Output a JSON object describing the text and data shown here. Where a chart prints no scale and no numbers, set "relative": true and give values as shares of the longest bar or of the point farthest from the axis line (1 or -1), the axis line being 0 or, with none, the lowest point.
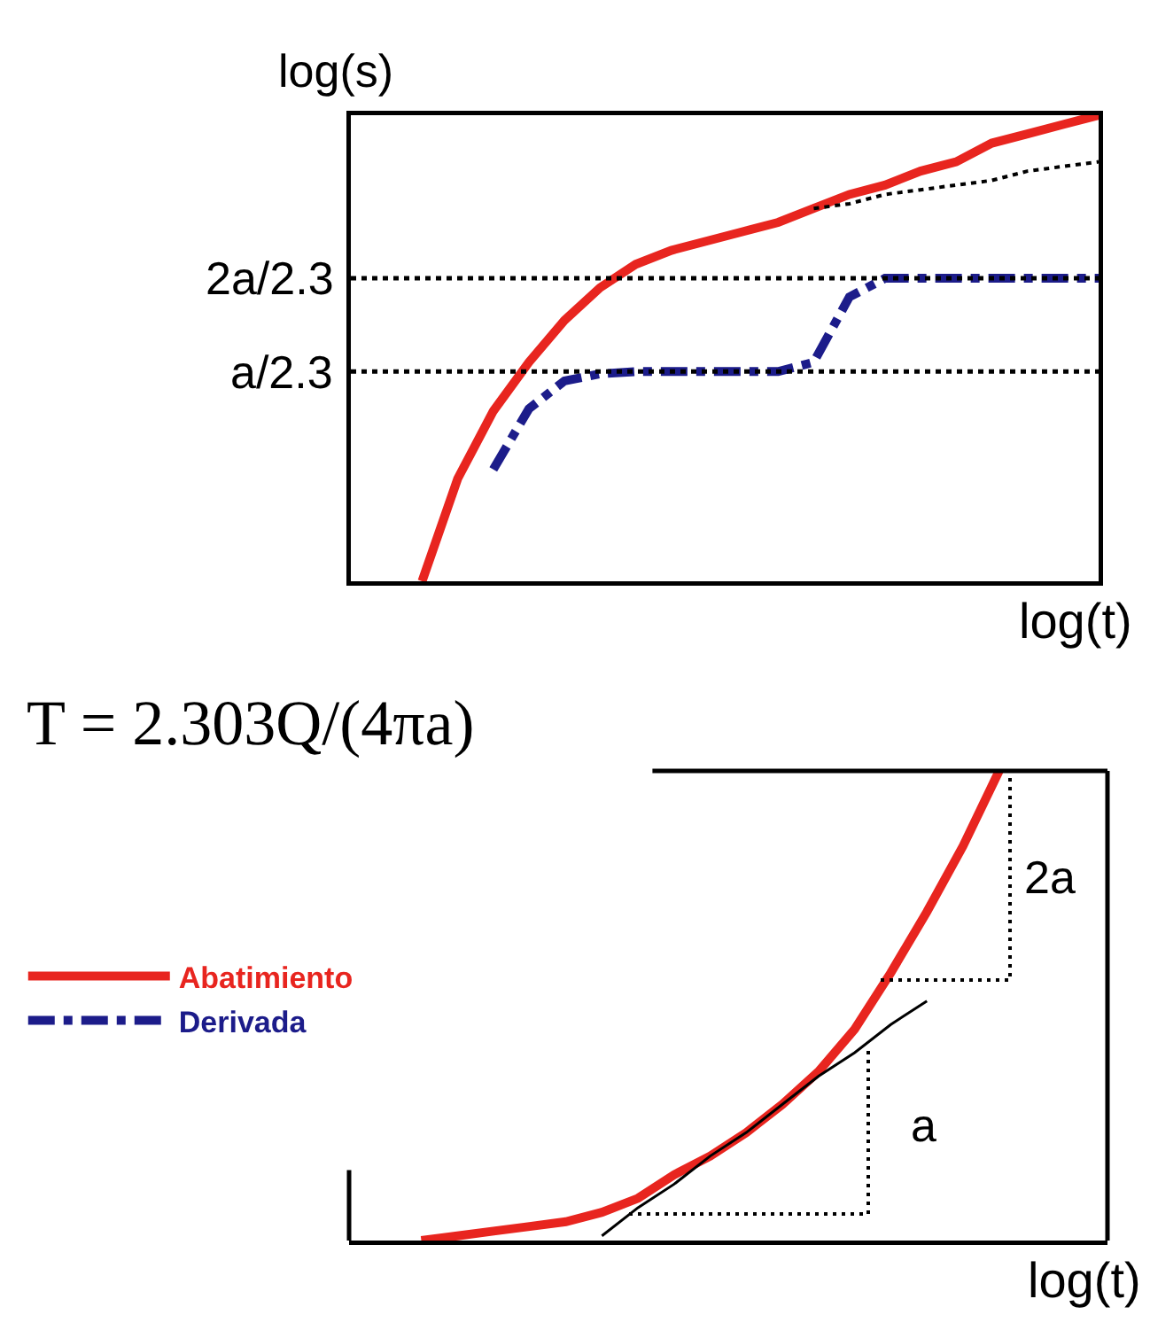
{
  "chart_data": [
    {
      "type": "line",
      "relative": true,
      "xlabel": "log(t)",
      "ylabel": "log(s)",
      "grid": false,
      "marker": "none",
      "legend": "bottom left",
      "categories": [
        null,
        null,
        null,
        null,
        null,
        null,
        null,
        null,
        null,
        null,
        null,
        null,
        null,
        null,
        null,
        null,
        null,
        null,
        null,
        null,
        null,
        null
      ],
      "series": [
        {
          "name": "Abatimiento",
          "color": "#e8251f",
          "line_style": "solid",
          "values": [
            null,
            null,
            0.0,
            0.22,
            0.365,
            0.47,
            0.56,
            0.63,
            0.68,
            0.71,
            0.73,
            0.75,
            0.77,
            0.8,
            0.83,
            0.85,
            0.88,
            0.9,
            0.94,
            0.96,
            0.98,
            1.0
          ]
        },
        {
          "name": "Derivada",
          "color": "#1c1c8a",
          "line_style": "dashdot",
          "values": [
            null,
            null,
            null,
            null,
            0.24,
            0.37,
            0.43,
            0.445,
            0.45,
            0.45,
            0.45,
            0.45,
            0.45,
            0.47,
            0.61,
            0.65,
            0.65,
            0.65,
            0.65,
            0.65,
            0.65,
            0.65
          ]
        },
        {
          "color": "#000000",
          "line_style": "dotted",
          "values": [
            null,
            null,
            null,
            null,
            null,
            null,
            null,
            null,
            null,
            null,
            null,
            null,
            null,
            0.8,
            0.81,
            0.83,
            0.84,
            0.85,
            0.86,
            0.88,
            0.89,
            0.9
          ]
        }
      ],
      "ref_lines": [
        {
          "axis": "y",
          "value": 0.65,
          "label": "2a/2.3",
          "color": "#000000",
          "line_style": "dotted"
        },
        {
          "axis": "y",
          "value": 0.45,
          "label": "a/2.3",
          "color": "#000000",
          "line_style": "dotted"
        }
      ]
    },
    {
      "type": "line",
      "relative": true,
      "xlabel": "log(t)",
      "grid": false,
      "marker": "none",
      "categories": [
        null,
        null,
        null,
        null,
        null,
        null,
        null,
        null,
        null,
        null,
        null,
        null,
        null,
        null,
        null,
        null,
        null,
        null,
        null,
        null,
        null,
        null
      ],
      "annotations": [
        "T = 2.303Q/(4πa)",
        "a",
        "2a"
      ],
      "series": [
        {
          "color": "#e8251f",
          "line_style": "solid",
          "values": [
            null,
            null,
            0.0,
            0.01,
            0.02,
            0.03,
            0.04,
            0.06,
            0.09,
            0.14,
            0.18,
            0.23,
            0.29,
            0.36,
            0.45,
            0.57,
            0.7,
            0.84,
            1.0,
            null,
            null,
            null
          ]
        },
        {
          "color": "#000000",
          "line_style": "solid",
          "values": [
            null,
            null,
            null,
            null,
            null,
            null,
            null,
            0.01,
            0.07,
            0.12,
            0.18,
            0.23,
            0.29,
            0.35,
            0.4,
            0.46,
            0.51,
            null,
            null,
            null,
            null,
            null
          ]
        }
      ]
    }
  ]
}
